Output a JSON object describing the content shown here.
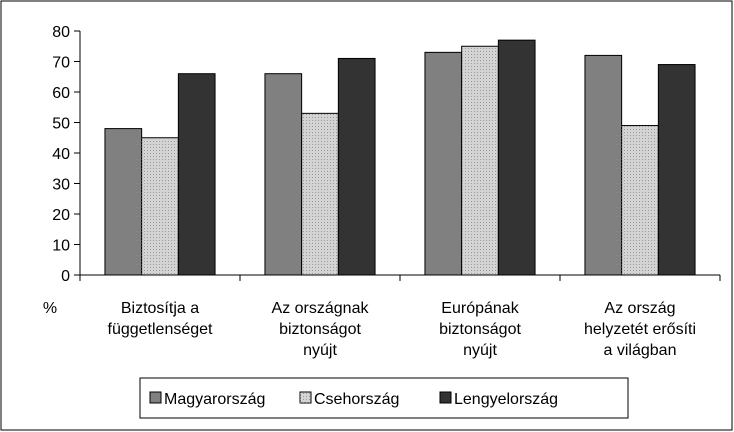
{
  "chart_data": {
    "type": "bar",
    "y_label": "%",
    "categories": [
      "Biztosítja a\nfüggetlenséget",
      "Az országnak\nbiztonságot\nnyújt",
      "Európának\nbiztonságot\nnyújt",
      "Az ország\nhelyzetét erősíti\na világban"
    ],
    "series": [
      {
        "name": "Magyarország",
        "color": "#808080",
        "values": [
          48,
          66,
          73,
          72
        ]
      },
      {
        "name": "Csehország",
        "color": "#d4d4d4",
        "values": [
          45,
          53,
          75,
          49
        ]
      },
      {
        "name": "Lengyelország",
        "color": "#333333",
        "values": [
          66,
          71,
          77,
          69
        ]
      }
    ],
    "ylim": [
      0,
      80
    ],
    "yticks": [
      0,
      10,
      20,
      30,
      40,
      50,
      60,
      70,
      80
    ],
    "grid": false,
    "legend": "bottom"
  }
}
